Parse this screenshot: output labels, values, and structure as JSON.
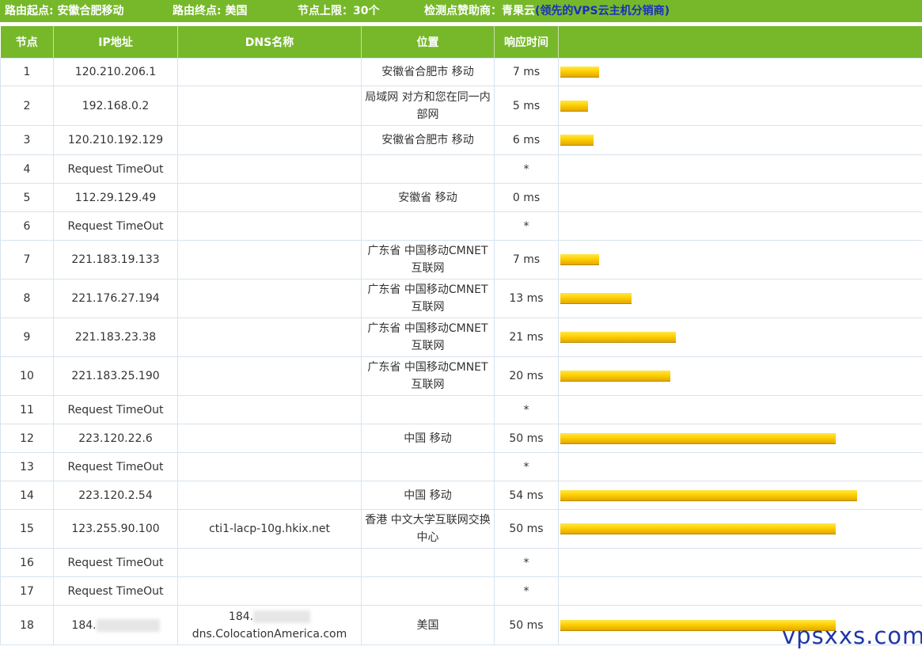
{
  "header": {
    "start_label": "路由起点: 安徽合肥移动",
    "end_label": "路由终点: 美国",
    "limit_label": "节点上限：30个",
    "sponsor_prefix": "检测点赞助商：",
    "sponsor_name": "青果云",
    "sponsor_desc": "(领先的VPS云主机分销商)"
  },
  "columns": {
    "node": "节点",
    "ip": "IP地址",
    "dns": "DNS名称",
    "location": "位置",
    "time": "响应时间"
  },
  "rows": [
    {
      "node": "1",
      "ip": "120.210.206.1",
      "dns": "",
      "location": "安徽省合肥市 移动",
      "time": "7 ms",
      "ms": 7
    },
    {
      "node": "2",
      "ip": "192.168.0.2",
      "dns": "",
      "location": "局域网 对方和您在同一内部网",
      "time": "5 ms",
      "ms": 5
    },
    {
      "node": "3",
      "ip": "120.210.192.129",
      "dns": "",
      "location": "安徽省合肥市 移动",
      "time": "6 ms",
      "ms": 6
    },
    {
      "node": "4",
      "ip": "Request TimeOut",
      "dns": "",
      "location": "",
      "time": "*",
      "ms": 0
    },
    {
      "node": "5",
      "ip": "112.29.129.49",
      "dns": "",
      "location": "安徽省 移动",
      "time": "0 ms",
      "ms": 0
    },
    {
      "node": "6",
      "ip": "Request TimeOut",
      "dns": "",
      "location": "",
      "time": "*",
      "ms": 0
    },
    {
      "node": "7",
      "ip": "221.183.19.133",
      "dns": "",
      "location": "广东省 中国移动CMNET互联网",
      "time": "7 ms",
      "ms": 7
    },
    {
      "node": "8",
      "ip": "221.176.27.194",
      "dns": "",
      "location": "广东省 中国移动CMNET互联网",
      "time": "13 ms",
      "ms": 13
    },
    {
      "node": "9",
      "ip": "221.183.23.38",
      "dns": "",
      "location": "广东省 中国移动CMNET互联网",
      "time": "21 ms",
      "ms": 21
    },
    {
      "node": "10",
      "ip": "221.183.25.190",
      "dns": "",
      "location": "广东省 中国移动CMNET互联网",
      "time": "20 ms",
      "ms": 20
    },
    {
      "node": "11",
      "ip": "Request TimeOut",
      "dns": "",
      "location": "",
      "time": "*",
      "ms": 0
    },
    {
      "node": "12",
      "ip": "223.120.22.6",
      "dns": "",
      "location": "中国 移动",
      "time": "50 ms",
      "ms": 50
    },
    {
      "node": "13",
      "ip": "Request TimeOut",
      "dns": "",
      "location": "",
      "time": "*",
      "ms": 0
    },
    {
      "node": "14",
      "ip": "223.120.2.54",
      "dns": "",
      "location": "中国 移动",
      "time": "54 ms",
      "ms": 54
    },
    {
      "node": "15",
      "ip": "123.255.90.100",
      "dns": "cti1-lacp-10g.hkix.net",
      "location": "香港 中文大学互联网交换中心",
      "time": "50 ms",
      "ms": 50
    },
    {
      "node": "16",
      "ip": "Request TimeOut",
      "dns": "",
      "location": "",
      "time": "*",
      "ms": 0
    },
    {
      "node": "17",
      "ip": "Request TimeOut",
      "dns": "",
      "location": "",
      "time": "*",
      "ms": 0
    },
    {
      "node": "18",
      "ip": "184.",
      "dns": "184.",
      "dns_suffix": "dns.ColocationAmerica.com",
      "location": "美国",
      "time": "50 ms",
      "ms": 50,
      "redacted": true
    }
  ],
  "watermark": "vpsxxs.com",
  "colors": {
    "accent": "#76b82a",
    "bar": "#ffd000",
    "sponsor_desc": "#1a2fbf"
  }
}
